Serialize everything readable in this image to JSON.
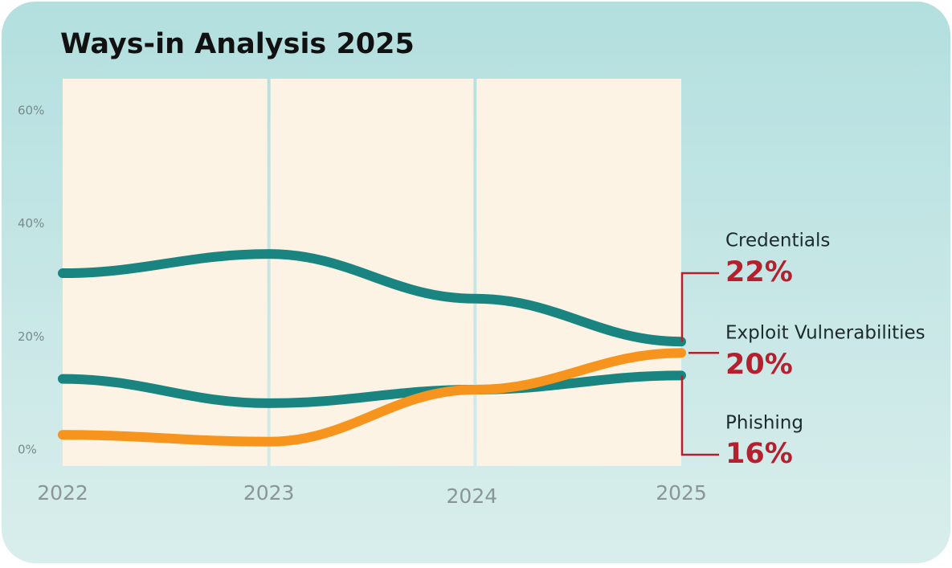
{
  "chart_data": {
    "type": "line",
    "title": "Ways-in Analysis 2025",
    "categories": [
      "2022",
      "2023",
      "2024",
      "2025"
    ],
    "series": [
      {
        "name": "Credentials",
        "color": "#1a8580",
        "values": [
          34.1,
          37.5,
          29.6,
          22
        ],
        "value_labels": [
          null,
          null,
          null,
          "22%"
        ]
      },
      {
        "name": "Exploit Vulnerabilities",
        "color": "#f7941d",
        "values": [
          5.5,
          4.3,
          13.5,
          20
        ],
        "value_labels": [
          null,
          null,
          null,
          "20%"
        ]
      },
      {
        "name": "Phishing",
        "color": "#1a8580",
        "values": [
          15.4,
          11.1,
          13.5,
          16
        ],
        "value_labels": [
          null,
          null,
          null,
          "16%"
        ]
      }
    ],
    "ylim": [
      0,
      68.5
    ],
    "yticks": [
      {
        "value": 0,
        "label": "0%"
      },
      {
        "value": 20,
        "label": "20%"
      },
      {
        "value": 40,
        "label": "40%"
      },
      {
        "value": 60,
        "label": "60%"
      }
    ],
    "label_color": "#b5202e"
  }
}
